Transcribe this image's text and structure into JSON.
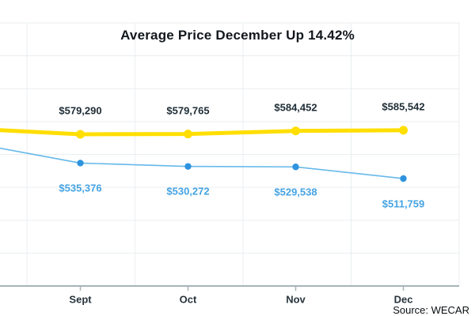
{
  "source": {
    "text": "Source: WECAR"
  },
  "chart_data": {
    "type": "line",
    "title": "Average Price December Up 14.42%",
    "categories": [
      "Sept",
      "Oct",
      "Nov",
      "Dec"
    ],
    "series": [
      {
        "name": "average-price-current-yellow",
        "color": "#ffde00",
        "marker_color": "#ffde00",
        "label_color": "#1f2d36",
        "label_position": "above",
        "values": [
          579290,
          579765,
          584452,
          585542
        ],
        "labels": [
          "$579,290",
          "$579,765",
          "$584,452",
          "$585,542"
        ]
      },
      {
        "name": "average-price-comparison-blue",
        "color": "#66b8ea",
        "marker_color": "#2e93df",
        "label_color": "#45a3e2",
        "label_position": "below",
        "values": [
          535376,
          530272,
          529538,
          511759
        ],
        "labels": [
          "$535,376",
          "$530,272",
          "$529,538",
          "$511,759"
        ]
      }
    ],
    "xlabel": "",
    "ylabel": "",
    "x_tick_labels": [
      "Sept",
      "Oct",
      "Nov",
      "Dec"
    ],
    "y_tick_labels": [],
    "grid": true,
    "legend": false,
    "grid_color": "#e9eef0",
    "axis_color": "#a6b4ba"
  }
}
